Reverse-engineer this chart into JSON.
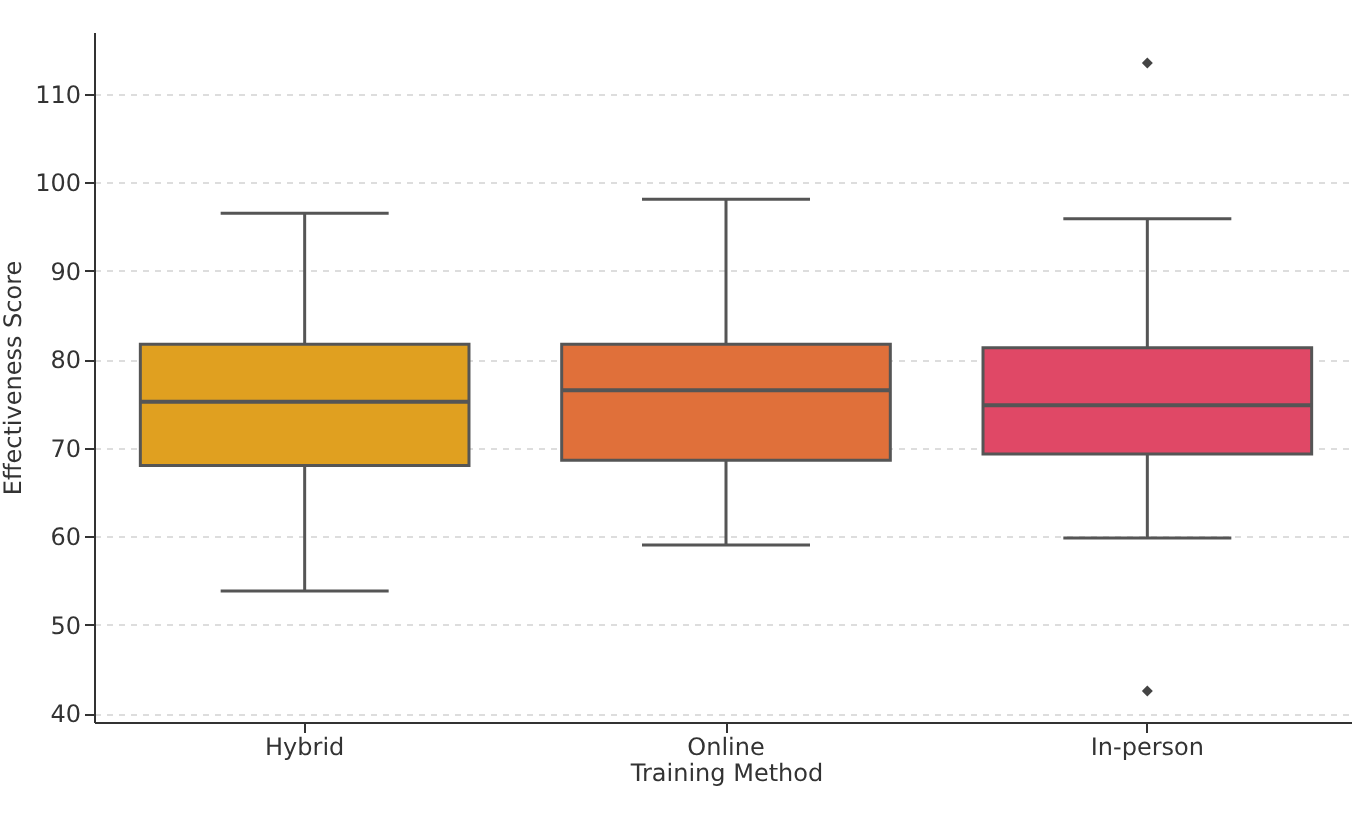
{
  "chart_data": {
    "type": "box",
    "xlabel": "Training Method",
    "ylabel": "Effectiveness Score",
    "categories": [
      "Hybrid",
      "Online",
      "In-person"
    ],
    "colors": [
      "#e0a020",
      "#e0703a",
      "#e04866"
    ],
    "boxes": [
      {
        "low": 53.8,
        "q1": 68,
        "median": 75.2,
        "q3": 81.7,
        "high": 96.5
      },
      {
        "low": 59,
        "q1": 68.6,
        "median": 76.5,
        "q3": 81.7,
        "high": 98.1
      },
      {
        "low": 59.8,
        "q1": 69.3,
        "median": 74.8,
        "q3": 81.3,
        "high": 95.9,
        "outliers": [
          113.5,
          42.5
        ]
      }
    ],
    "ylim": [
      39,
      117
    ],
    "yticks": [
      40,
      50,
      60,
      70,
      80,
      90,
      100,
      110
    ],
    "grid": "y",
    "marker": "diamond"
  }
}
